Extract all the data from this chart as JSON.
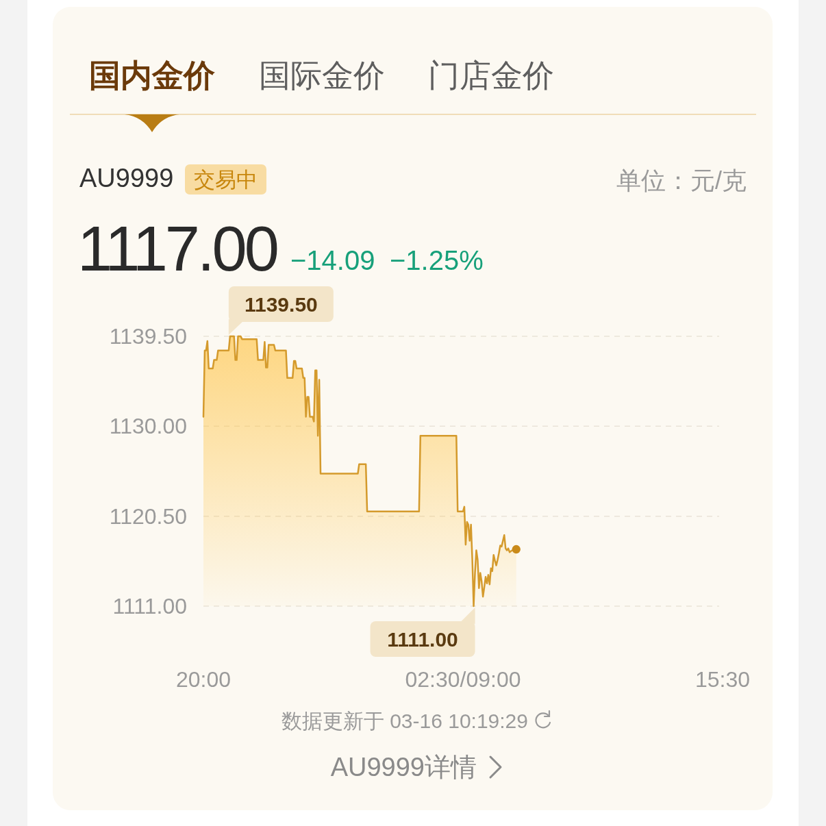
{
  "chart_data": {
    "type": "area",
    "title": "AU9999",
    "annotations": [
      "国内金价",
      "国际金价",
      "门店金价",
      "交易中",
      "单位：元/克",
      "1117.00",
      "−14.09",
      "−1.25%",
      "1139.50",
      "1111.00",
      "数据更新于 03-16 10:19:29",
      "AU9999详情"
    ],
    "categories": [
      "20:00",
      null,
      null,
      null,
      null,
      null,
      null,
      null,
      null,
      null,
      null,
      null,
      null,
      null,
      null,
      null,
      null,
      null,
      null,
      null,
      null,
      null,
      null,
      null,
      null,
      null,
      null,
      null,
      null,
      null,
      null,
      null,
      null,
      null,
      null,
      null,
      null,
      null,
      null,
      null,
      null,
      null,
      null,
      null,
      null,
      null,
      null,
      null,
      null,
      null,
      null,
      null,
      null,
      null,
      null,
      null,
      null,
      null,
      null,
      null,
      null,
      null,
      null,
      null,
      null,
      null,
      null,
      null,
      null,
      null,
      null,
      null,
      null,
      null,
      null,
      null,
      null,
      null,
      null,
      null,
      null,
      null,
      null,
      null,
      null,
      null,
      null,
      null,
      null,
      null,
      null,
      null,
      null,
      null,
      null,
      null,
      null,
      null,
      null,
      null,
      null,
      null,
      null,
      null,
      null,
      null,
      null,
      null,
      null,
      null,
      null,
      null,
      null,
      null,
      null,
      null,
      null,
      null,
      null,
      null,
      null,
      null,
      null,
      null,
      null,
      null,
      null,
      null,
      null,
      null,
      null,
      null,
      null,
      null,
      null,
      null,
      null,
      null,
      null,
      null,
      null,
      null,
      null,
      null,
      null,
      null,
      null,
      null,
      null,
      null,
      null,
      null,
      null,
      null,
      null,
      null,
      null,
      null,
      null,
      null,
      null,
      null,
      null,
      null,
      null,
      null,
      null,
      null,
      null,
      null,
      null,
      null,
      null,
      null,
      null,
      null,
      null,
      null,
      null,
      null,
      null,
      null,
      null,
      null,
      null,
      null,
      null,
      null,
      null,
      null,
      null,
      null,
      null,
      null,
      null,
      "02:30/09:00",
      null,
      null,
      null,
      null,
      null,
      null,
      null,
      null,
      null,
      null,
      null,
      null,
      null,
      null,
      null,
      null,
      null,
      null,
      null,
      null,
      null,
      null,
      null,
      null,
      null,
      null,
      null,
      null,
      null,
      null,
      null,
      null,
      null,
      null,
      null,
      null,
      null,
      null,
      null,
      null,
      null,
      null,
      null,
      null,
      null,
      null,
      null,
      null,
      null,
      null,
      null,
      null,
      null,
      null,
      null,
      null,
      null,
      null,
      null,
      null,
      null,
      null,
      null,
      null,
      null,
      null,
      null,
      null,
      null,
      null,
      null,
      null,
      null,
      null,
      null,
      null,
      null,
      null,
      null,
      null,
      null,
      null,
      null,
      null,
      null,
      null,
      null,
      null,
      null,
      null,
      null,
      null,
      null,
      null,
      null,
      null,
      null,
      null,
      null,
      null,
      null,
      null,
      null,
      null,
      null,
      null,
      null,
      null,
      null,
      null,
      null,
      null,
      null,
      null,
      null,
      null,
      null,
      null,
      null,
      null,
      null,
      null,
      null,
      null,
      null,
      null,
      null,
      null,
      null,
      null,
      null,
      null,
      null,
      null,
      null,
      null,
      null,
      null,
      null,
      null,
      null,
      null,
      null,
      null,
      null,
      null,
      null,
      null,
      null,
      null,
      null,
      null,
      null,
      null,
      null,
      null,
      null,
      null,
      null,
      null,
      null,
      null,
      null,
      null,
      null,
      null,
      null,
      null,
      null,
      null,
      null,
      null,
      null,
      null,
      null,
      null,
      null,
      null,
      null,
      null,
      null,
      null,
      null,
      null,
      null,
      null,
      null,
      null,
      null,
      null,
      null,
      null,
      null,
      null,
      "15:30"
    ],
    "ylim": [
      1111,
      1139.5
    ],
    "yticks": [
      {
        "value": 1111,
        "label": "1111.00"
      },
      {
        "value": 1120.5,
        "label": "1120.50"
      },
      {
        "value": 1130,
        "label": "1130.00"
      },
      {
        "value": 1139.5,
        "label": "1139.50"
      }
    ],
    "grid": "y",
    "series": [
      {
        "color": "#d49a2c",
        "values": [
          1131.0,
          1138.0,
          1138.0,
          1139.0,
          1136.1,
          1136.1,
          1136.1,
          1136.1,
          1137.0,
          1137.0,
          1137.0,
          1138.0,
          1138.0,
          1138.0,
          1138.0,
          1138.0,
          1138.0,
          1138.0,
          1138.0,
          1138.0,
          1139.5,
          1139.5,
          1139.5,
          1139.5,
          1137.0,
          1137.0,
          1139.5,
          1139.5,
          1139.5,
          1139.2,
          1139.2,
          1139.2,
          1139.2,
          1139.2,
          1139.2,
          1139.2,
          1139.2,
          1139.2,
          1139.2,
          1139.2,
          1139.2,
          1137.0,
          1137.0,
          1137.0,
          1137.0,
          1137.0,
          1138.9,
          1136.2,
          1136.2,
          1138.6,
          1138.6,
          1138.6,
          1138.6,
          1138.6,
          1138.0,
          1138.0,
          1138.0,
          1138.0,
          1138.0,
          1138.0,
          1138.0,
          1138.0,
          1138.0,
          1135.1,
          1135.1,
          1135.1,
          1135.1,
          1135.1,
          1136.9,
          1136.9,
          1136.1,
          1136.1,
          1136.1,
          1136.1,
          1136.1,
          1135.1,
          1135.1,
          1131.0,
          1133.1,
          1133.1,
          1131.0,
          1131.0,
          1131.0,
          1130.5,
          1135.9,
          1135.9,
          1129.0,
          1134.9,
          1125.0,
          1125.0,
          1125.0,
          1125.0,
          1125.0,
          1125.0,
          1125.0,
          1125.0,
          1125.0,
          1125.0,
          1125.0,
          1125.0,
          1125.0,
          1125.0,
          1125.0,
          1125.0,
          1125.0,
          1125.0,
          1125.0,
          1125.0,
          1125.0,
          1125.0,
          1125.0,
          1125.0,
          1125.0,
          1125.0,
          1125.0,
          1125.0,
          1125.0,
          1126.0,
          1126.0,
          1126.0,
          1126.0,
          1126.0,
          1126.0,
          1121.0,
          1121.0,
          1121.0,
          1121.0,
          1121.0,
          1121.0,
          1121.0,
          1121.0,
          1121.0,
          1121.0,
          1121.0,
          1121.0,
          1121.0,
          1121.0,
          1121.0,
          1121.0,
          1121.0,
          1121.0,
          1121.0,
          1121.0,
          1121.0,
          1121.0,
          1121.0,
          1121.0,
          1121.0,
          1121.0,
          1121.0,
          1121.0,
          1121.0,
          1121.0,
          1121.0,
          1121.0,
          1121.0,
          1121.0,
          1121.0,
          1121.0,
          1121.0,
          1121.0,
          1121.0,
          1121.0,
          1129.0,
          1129.0,
          1129.0,
          1129.0,
          1129.0,
          1129.0,
          1129.0,
          1129.0,
          1129.0,
          1129.0,
          1129.0,
          1129.0,
          1129.0,
          1129.0,
          1129.0,
          1129.0,
          1129.0,
          1129.0,
          1129.0,
          1129.0,
          1129.0,
          1129.0,
          1129.0,
          1129.0,
          1129.0,
          1129.0,
          1129.0,
          1129.0,
          1121.0,
          1121.0,
          1121.0,
          1121.0,
          1121.0,
          1121.5,
          1117.5,
          1119.9,
          1119.6,
          1117.9,
          1119.6,
          1115.9,
          1111.0,
          1114.5,
          1116.9,
          1115.9,
          1112.9,
          1114.5,
          1113.6,
          1112.0,
          1113.0,
          1114.1,
          1113.4,
          1114.3,
          1113.3,
          1115.0,
          1114.7,
          1116.4,
          1115.8,
          1115.3,
          1115.9,
          1116.6,
          1117.4,
          1117.3,
          1117.9,
          1118.5,
          1117.1,
          1116.9,
          1117.1,
          1116.7,
          1116.8,
          1116.9,
          1116.9,
          1117.0,
          1117.0,
          null,
          null,
          null,
          null,
          null,
          null,
          null,
          null,
          null,
          null,
          null,
          null,
          null,
          null,
          null,
          null,
          null,
          null,
          null,
          null,
          null,
          null,
          null,
          null,
          null,
          null,
          null,
          null,
          null,
          null,
          null,
          null,
          null,
          null,
          null,
          null,
          null,
          null,
          null,
          null,
          null,
          null,
          null,
          null,
          null,
          null,
          null,
          null,
          null,
          null,
          null,
          null,
          null,
          null,
          null,
          null,
          null,
          null,
          null,
          null,
          null,
          null,
          null,
          null,
          null,
          null,
          null,
          null,
          null,
          null,
          null,
          null,
          null,
          null,
          null,
          null,
          null,
          null,
          null,
          null,
          null,
          null,
          null,
          null,
          null,
          null,
          null,
          null,
          null,
          null,
          null,
          null,
          null,
          null,
          null,
          null,
          null,
          null,
          null,
          null,
          null,
          null,
          null,
          null,
          null,
          null,
          null,
          null,
          null,
          null,
          null,
          null,
          null,
          null,
          null,
          null,
          null,
          null,
          null,
          null,
          null,
          null,
          null,
          null,
          null,
          null,
          null,
          null,
          null,
          null,
          null,
          null,
          null,
          null,
          null,
          null,
          null,
          null,
          null,
          null,
          null,
          null,
          null,
          null,
          null,
          null,
          null,
          null,
          null,
          null,
          null,
          null,
          null,
          null,
          null
        ]
      },
      {
        "type": "scatter",
        "color": "#c98a1a",
        "marker": "circle",
        "values": [
          null,
          null,
          null,
          null,
          null,
          null,
          null,
          null,
          null,
          null,
          null,
          null,
          null,
          null,
          null,
          null,
          null,
          null,
          null,
          null,
          null,
          null,
          null,
          null,
          null,
          null,
          null,
          null,
          null,
          null,
          null,
          null,
          null,
          null,
          null,
          null,
          null,
          null,
          null,
          null,
          null,
          null,
          null,
          null,
          null,
          null,
          null,
          null,
          null,
          null,
          null,
          null,
          null,
          null,
          null,
          null,
          null,
          null,
          null,
          null,
          null,
          null,
          null,
          null,
          null,
          null,
          null,
          null,
          null,
          null,
          null,
          null,
          null,
          null,
          null,
          null,
          null,
          null,
          null,
          null,
          null,
          null,
          null,
          null,
          null,
          null,
          null,
          null,
          null,
          null,
          null,
          null,
          null,
          null,
          null,
          null,
          null,
          null,
          null,
          null,
          null,
          null,
          null,
          null,
          null,
          null,
          null,
          null,
          null,
          null,
          null,
          null,
          null,
          null,
          null,
          null,
          null,
          null,
          null,
          null,
          null,
          null,
          null,
          null,
          null,
          null,
          null,
          null,
          null,
          null,
          null,
          null,
          null,
          null,
          null,
          null,
          null,
          null,
          null,
          null,
          null,
          null,
          null,
          null,
          null,
          null,
          null,
          null,
          null,
          null,
          null,
          null,
          null,
          null,
          null,
          null,
          null,
          null,
          null,
          null,
          null,
          null,
          null,
          null,
          null,
          null,
          null,
          null,
          null,
          null,
          null,
          null,
          null,
          null,
          null,
          null,
          null,
          null,
          null,
          null,
          null,
          null,
          null,
          null,
          null,
          null,
          null,
          null,
          null,
          null,
          null,
          null,
          null,
          null,
          null,
          null,
          null,
          null,
          null,
          null,
          null,
          null,
          null,
          null,
          null,
          null,
          null,
          null,
          null,
          null,
          null,
          null,
          null,
          null,
          null,
          null,
          null,
          null,
          null,
          null,
          null,
          null,
          null,
          null,
          null,
          null,
          null,
          null,
          null,
          null,
          null,
          null,
          null,
          null,
          null,
          1117.0,
          null,
          null,
          null,
          null,
          null,
          null,
          null,
          null,
          null,
          null,
          null,
          null,
          null,
          null,
          null,
          null,
          null,
          null,
          null,
          null,
          null,
          null,
          null,
          null,
          null,
          null,
          null,
          null,
          null,
          null,
          null,
          null,
          null,
          null,
          null,
          null,
          null,
          null,
          null,
          null,
          null,
          null,
          null,
          null,
          null,
          null,
          null,
          null,
          null,
          null,
          null,
          null,
          null,
          null,
          null,
          null,
          null,
          null,
          null,
          null,
          null,
          null,
          null,
          null,
          null,
          null,
          null,
          null,
          null,
          null,
          null,
          null,
          null,
          null,
          null,
          null,
          null,
          null,
          null,
          null,
          null,
          null,
          null,
          null,
          null,
          null,
          null,
          null,
          null,
          null,
          null,
          null,
          null,
          null,
          null,
          null,
          null,
          null,
          null,
          null,
          null,
          null,
          null,
          null,
          null,
          null,
          null,
          null,
          null,
          null,
          null,
          null,
          null,
          null,
          null,
          null,
          null,
          null,
          null,
          null,
          null,
          null,
          null,
          null,
          null,
          null,
          null,
          null,
          null,
          null,
          null,
          null,
          null,
          null,
          null,
          null,
          null,
          null,
          null,
          null,
          null,
          null,
          null,
          null,
          null,
          null,
          null,
          null,
          null,
          null,
          null,
          null,
          null,
          null,
          null
        ]
      }
    ]
  }
}
